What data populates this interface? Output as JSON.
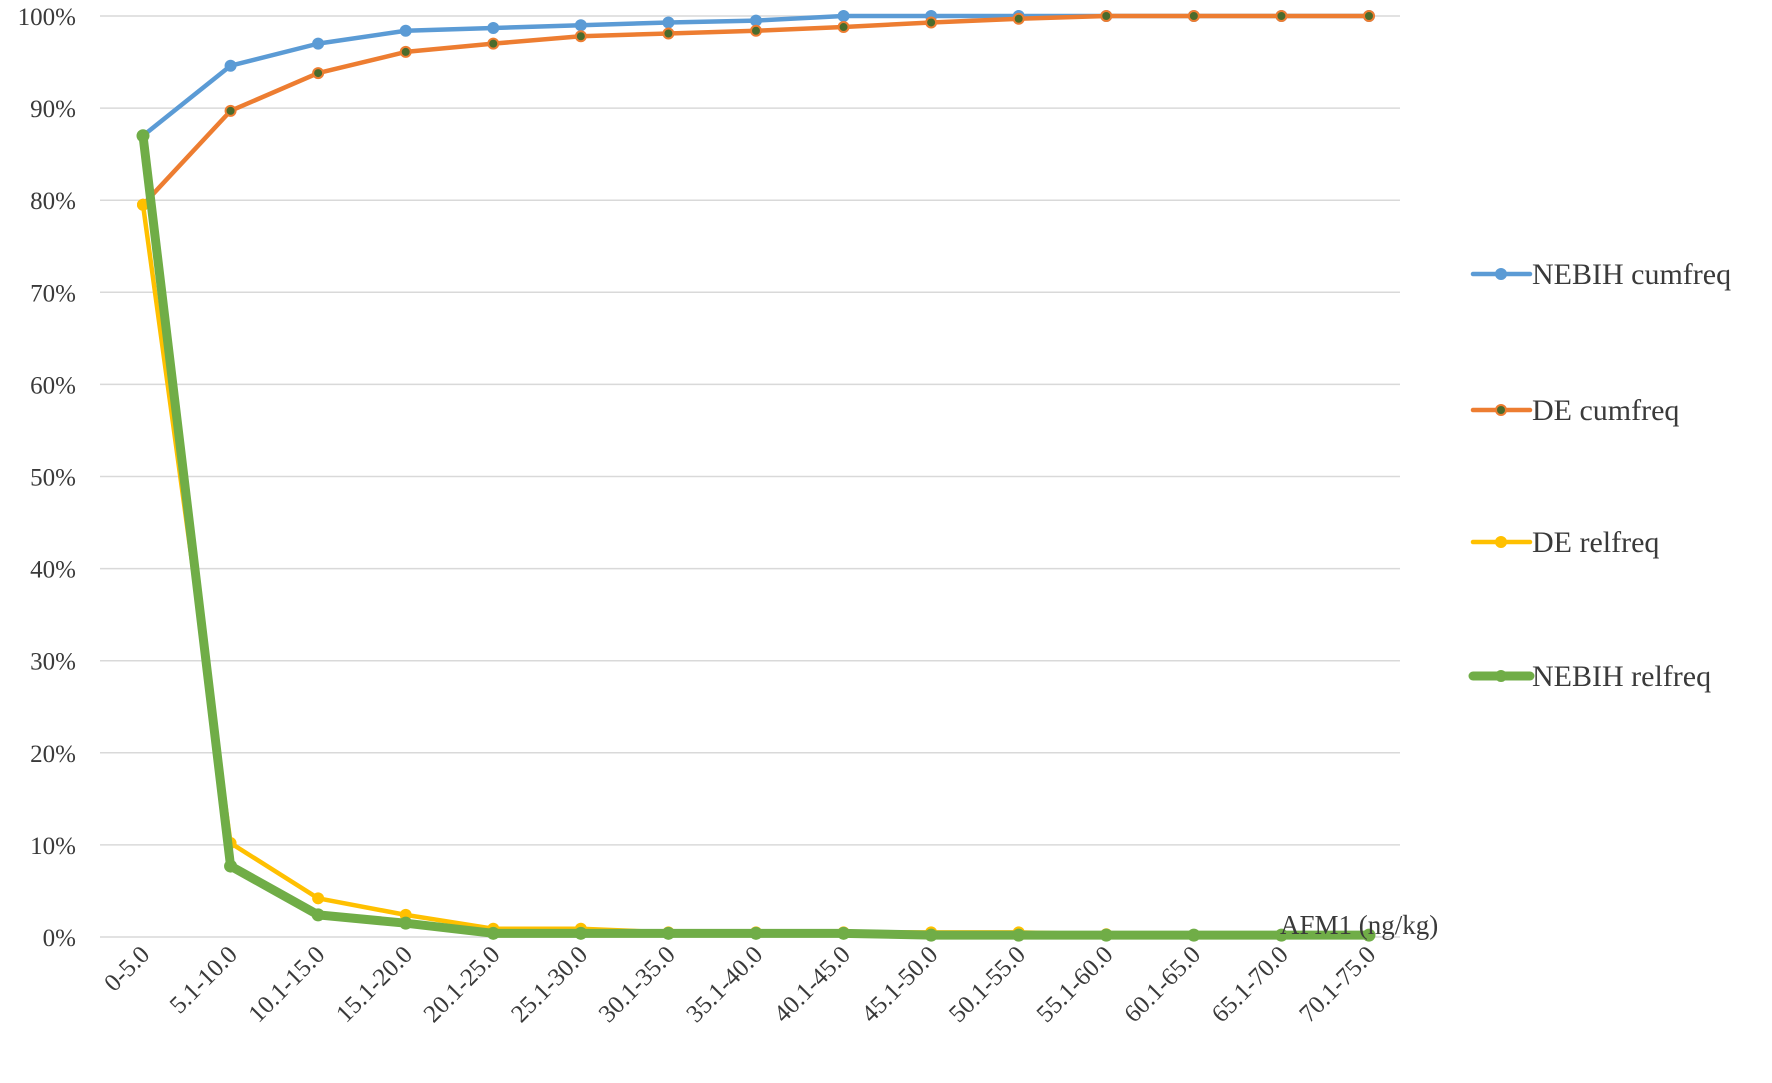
{
  "chart_data": {
    "type": "line",
    "title": "",
    "xlabel": "AFM1 (ng/kg)",
    "ylabel": "",
    "ylim": [
      0,
      100
    ],
    "y_ticks": [
      "0%",
      "10%",
      "20%",
      "30%",
      "40%",
      "50%",
      "60%",
      "70%",
      "80%",
      "90%",
      "100%"
    ],
    "grid": "horizontal",
    "legend_position": "right",
    "categories": [
      "0-5.0",
      "5.1-10.0",
      "10.1-15.0",
      "15.1-20.0",
      "20.1-25.0",
      "25.1-30.0",
      "30.1-35.0",
      "35.1-40.0",
      "40.1-45.0",
      "45.1-50.0",
      "50.1-55.0",
      "55.1-60.0",
      "60.1-65.0",
      "65.1-70.0",
      "70.1-75.0"
    ],
    "series": [
      {
        "name": "NEBIH cumfreq",
        "color": "#5b9bd5",
        "marker_fill": "#5b9bd5",
        "line_width": 4.5,
        "values": [
          87.0,
          94.6,
          97.0,
          98.4,
          98.7,
          99.0,
          99.3,
          99.5,
          100,
          100,
          100,
          100,
          100,
          100,
          100
        ]
      },
      {
        "name": "DE cumfreq",
        "color": "#ed7d31",
        "marker_fill": "#4a6b2c",
        "line_width": 4.5,
        "values": [
          79.5,
          89.7,
          93.8,
          96.1,
          97.0,
          97.8,
          98.1,
          98.4,
          98.8,
          99.3,
          99.7,
          100,
          100,
          100,
          100
        ]
      },
      {
        "name": "DE relfreq",
        "color": "#ffc000",
        "marker_fill": "#ffc000",
        "line_width": 4.5,
        "values": [
          79.5,
          10.2,
          4.2,
          2.4,
          0.9,
          0.9,
          0.5,
          0.5,
          0.5,
          0.5,
          0.5,
          0.3,
          0.2,
          0.2,
          0.2
        ]
      },
      {
        "name": "NEBIH relfreq",
        "color": "#70ad47",
        "marker_fill": "#70ad47",
        "line_width": 9,
        "values": [
          87.0,
          7.7,
          2.4,
          1.5,
          0.4,
          0.4,
          0.4,
          0.4,
          0.4,
          0.2,
          0.2,
          0.2,
          0.2,
          0.2,
          0.2
        ]
      }
    ]
  }
}
